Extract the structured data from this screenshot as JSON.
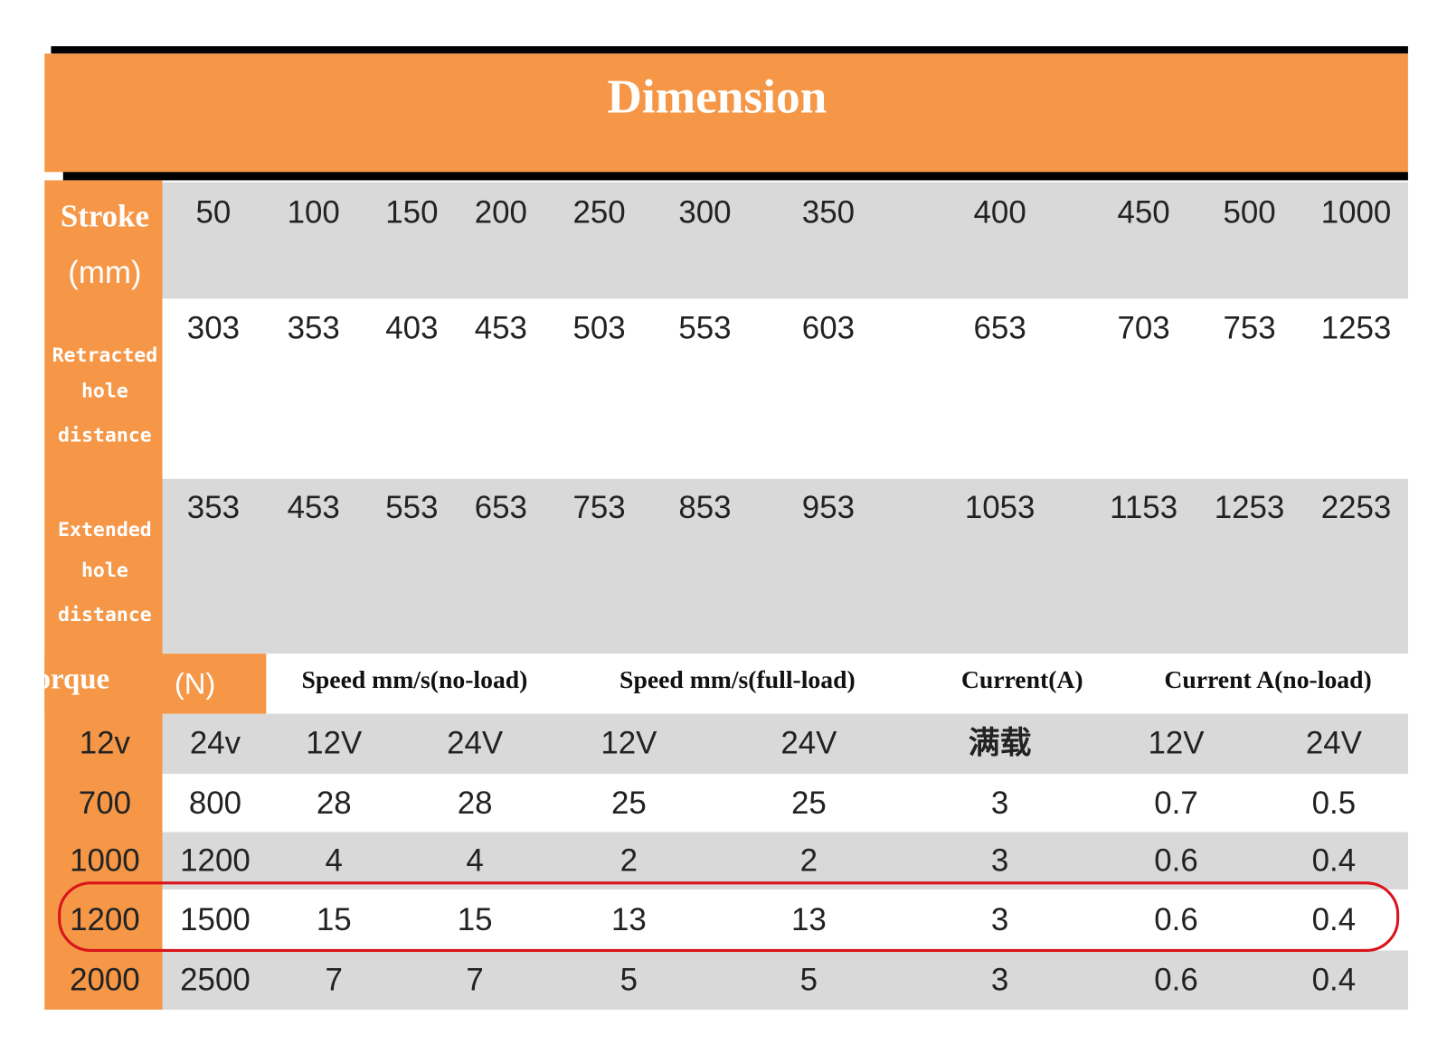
{
  "title": "Dimension",
  "dimensions": {
    "rows": [
      {
        "label": [
          "Stroke",
          "(mm)"
        ],
        "values": [
          50,
          100,
          150,
          200,
          250,
          300,
          350,
          400,
          450,
          500,
          1000
        ]
      },
      {
        "label": [
          "Retracted",
          "hole",
          "distance"
        ],
        "values": [
          303,
          353,
          403,
          453,
          503,
          553,
          603,
          653,
          703,
          753,
          1253
        ]
      },
      {
        "label": [
          "Extended",
          "hole",
          "distance"
        ],
        "values": [
          353,
          453,
          553,
          653,
          753,
          853,
          953,
          1053,
          1153,
          1253,
          2253
        ]
      }
    ]
  },
  "performance": {
    "torque": "Torque",
    "torque_unit": "(N)",
    "columns": [
      "Speed mm/s(no-load)",
      "Speed mm/s(full-load)",
      "Current(A)",
      "Current A(no-load)"
    ],
    "subheader": [
      "12v",
      "24v",
      "12V",
      "24V",
      "12V",
      "24V",
      "满载",
      "12V",
      "24V"
    ],
    "rows": [
      [
        700,
        800,
        28,
        28,
        25,
        25,
        3,
        0.7,
        0.5
      ],
      [
        1000,
        1200,
        4,
        4,
        2,
        2,
        3,
        0.6,
        0.4
      ],
      [
        1200,
        1500,
        15,
        15,
        13,
        13,
        3,
        0.6,
        0.4
      ],
      [
        2000,
        2500,
        7,
        7,
        5,
        5,
        3,
        0.6,
        0.4
      ]
    ]
  }
}
